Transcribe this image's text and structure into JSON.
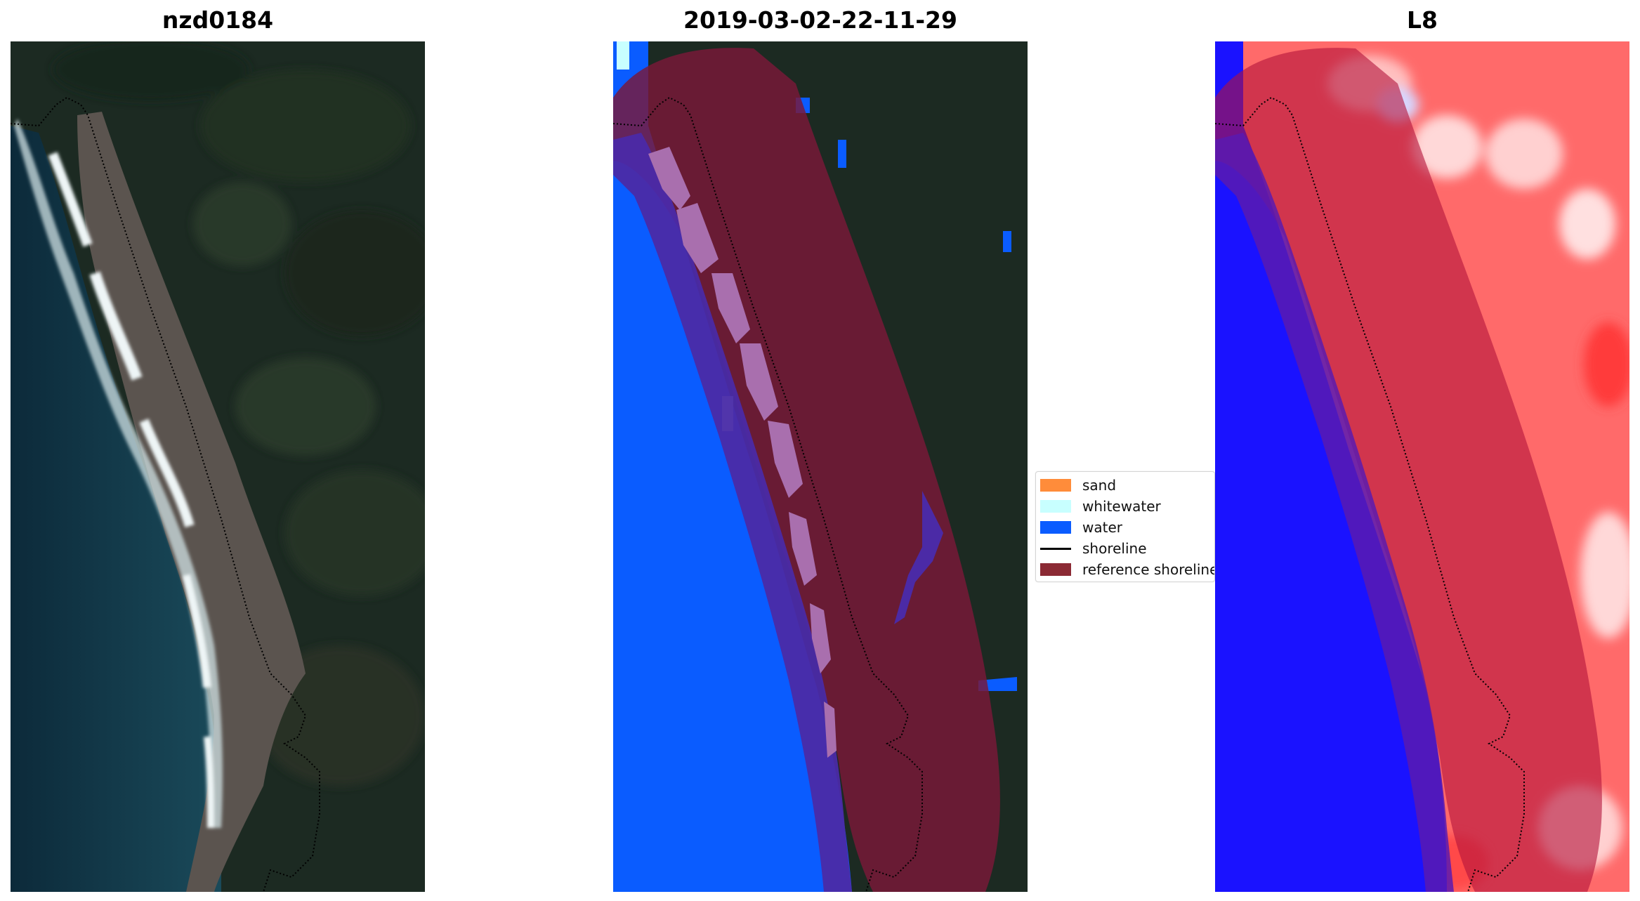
{
  "panels": [
    {
      "title": "nzd0184"
    },
    {
      "title": "2019-03-02-22-11-29"
    },
    {
      "title": "L8"
    }
  ],
  "legend": {
    "items": [
      {
        "label": "sand",
        "color": "#ff8c3a",
        "kind": "patch"
      },
      {
        "label": "whitewater",
        "color": "#c8ffff",
        "kind": "patch"
      },
      {
        "label": "water",
        "color": "#0a5cff",
        "kind": "patch"
      },
      {
        "label": "shoreline",
        "color": "#000000",
        "kind": "line"
      },
      {
        "label": "reference shoreline",
        "color": "#8b2a34",
        "kind": "patch"
      }
    ]
  },
  "colors": {
    "ocean": "#0f2d3e",
    "forest": "#1e2b22",
    "beach_sand": "#5e5650",
    "surf": "#e4eef0",
    "water_class": "#0a5cff",
    "sand_overlay": "#a96fae",
    "reference_buffer": "#7a1838",
    "water_buffer_overlap": "#4b2aa6",
    "index_high": "#ff2b2b",
    "index_low": "#1a12ff"
  }
}
